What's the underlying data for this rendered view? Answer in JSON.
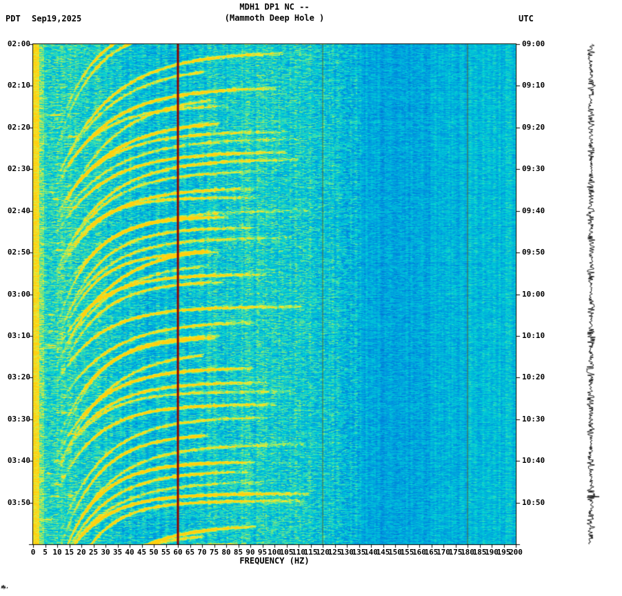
{
  "header": {
    "title": "MDH1 DP1 NC --",
    "subtitle": "(Mammoth Deep Hole )",
    "tz_left": "PDT",
    "date": "Sep19,2025",
    "tz_right": "UTC"
  },
  "axes": {
    "xlabel": "FREQUENCY (HZ)",
    "freq_tick_labels": [
      "0",
      "5",
      "10",
      "15",
      "20",
      "25",
      "30",
      "35",
      "40",
      "45",
      "50",
      "55",
      "60",
      "65",
      "70",
      "75",
      "80",
      "85",
      "90",
      "95",
      "100",
      "105",
      "110",
      "115",
      "120",
      "125",
      "130",
      "135",
      "140",
      "145",
      "150",
      "155",
      "160",
      "165",
      "170",
      "175",
      "180",
      "185",
      "190",
      "195",
      "200"
    ],
    "left_time_labels": [
      "02:00",
      "02:10",
      "02:20",
      "02:30",
      "02:40",
      "02:50",
      "03:00",
      "03:10",
      "03:20",
      "03:30",
      "03:40",
      "03:50"
    ],
    "right_time_labels": [
      "09:00",
      "09:10",
      "09:20",
      "09:30",
      "09:40",
      "09:50",
      "10:00",
      "10:10",
      "10:20",
      "10:30",
      "10:40",
      "10:50"
    ]
  },
  "colors": {
    "background": "#ffffff",
    "text": "#000000",
    "interference_line": "#8b0000",
    "harmonic_line": "#6e5f00",
    "trace": "#000000",
    "axis": "#000000"
  },
  "chart_data": {
    "type": "heatmap",
    "subtype": "seismic spectrogram",
    "station": "MDH1 DP1 NC --",
    "station_name": "Mammoth Deep Hole",
    "date": "Sep19,2025",
    "xlabel": "FREQUENCY (HZ)",
    "freq_range_hz": [
      0,
      200
    ],
    "freq_tick_step_hz": 5,
    "time_axis_left": {
      "timezone": "PDT",
      "start": "02:00",
      "end": "04:00",
      "tick_minutes": 10
    },
    "time_axis_right": {
      "timezone": "UTC",
      "start": "09:00",
      "end": "11:00",
      "tick_minutes": 10
    },
    "features": {
      "mains_interference_hz": 60,
      "mains_harmonics_hz": [
        120,
        180
      ],
      "event_onsets_minutes_after_start": [
        2,
        10,
        18,
        26,
        34,
        41,
        48,
        55,
        63,
        70,
        78,
        86,
        93,
        100,
        108,
        115
      ],
      "partial_event_before_start_min": -6,
      "signal_description": "repeating upward-gliding harmonic tremor arcs spanning ~10-110 Hz, steep at low frequency and flattening toward higher frequency",
      "background_description": "broadband cyan-blue speckled noise, brighter band near 0-2 Hz, smoother above ~135 Hz",
      "side_trace": "vertical black seismogram wiggle trace along right margin"
    },
    "colormap_stops": [
      [
        0.0,
        [
          8,
          64,
          190
        ]
      ],
      [
        0.3,
        [
          0,
          148,
          224
        ]
      ],
      [
        0.5,
        [
          0,
          206,
          214
        ]
      ],
      [
        0.62,
        [
          72,
          224,
          168
        ]
      ],
      [
        0.72,
        [
          168,
          234,
          88
        ]
      ],
      [
        0.82,
        [
          234,
          234,
          56
        ]
      ],
      [
        1.0,
        [
          255,
          208,
          16
        ]
      ]
    ],
    "legend": "none",
    "grid": "off"
  }
}
